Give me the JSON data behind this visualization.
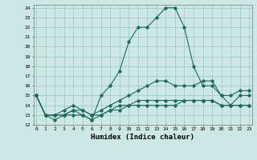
{
  "title": "",
  "xlabel": "Humidex (Indice chaleur)",
  "background_color": "#cde8e4",
  "grid_color": "#a0ccc5",
  "line_color": "#1a6b5a",
  "yticks": [
    12,
    13,
    14,
    15,
    16,
    17,
    18,
    19,
    20,
    21,
    22,
    23,
    24
  ],
  "xticks": [
    0,
    1,
    2,
    3,
    4,
    5,
    6,
    7,
    8,
    9,
    10,
    11,
    12,
    13,
    14,
    15,
    16,
    17,
    18,
    19,
    20,
    21,
    22,
    23
  ],
  "line1_x": [
    0,
    1,
    2,
    3,
    4,
    5,
    6,
    7,
    8,
    9,
    10,
    11,
    12,
    13,
    14,
    15,
    16,
    17,
    18,
    19,
    20,
    21,
    22,
    23
  ],
  "line1_y": [
    15,
    13,
    12.5,
    13,
    13.5,
    13,
    12.5,
    15,
    16,
    17.5,
    20.5,
    22,
    22,
    23,
    24,
    24,
    22,
    18,
    16,
    16,
    15,
    14,
    15,
    15
  ],
  "line2_x": [
    0,
    1,
    2,
    3,
    4,
    5,
    6,
    7,
    8,
    9,
    10,
    11,
    12,
    13,
    14,
    15,
    16,
    17,
    18,
    19,
    20,
    21,
    22,
    23
  ],
  "line2_y": [
    15,
    13,
    13,
    13.5,
    14,
    13.5,
    13,
    13.5,
    14,
    14.5,
    15,
    15.5,
    16,
    16.5,
    16.5,
    16,
    16,
    16,
    16.5,
    16.5,
    15,
    15,
    15.5,
    15.5
  ],
  "line3_x": [
    0,
    1,
    2,
    3,
    4,
    5,
    6,
    7,
    8,
    9,
    10,
    11,
    12,
    13,
    14,
    15,
    16,
    17,
    18,
    19,
    20,
    21,
    22,
    23
  ],
  "line3_y": [
    15,
    13,
    13,
    13,
    13.5,
    13.5,
    13,
    13,
    13.5,
    14,
    14,
    14.5,
    14.5,
    14.5,
    14.5,
    14.5,
    14.5,
    14.5,
    14.5,
    14.5,
    14,
    14,
    14,
    14
  ],
  "line4_x": [
    0,
    1,
    2,
    3,
    4,
    5,
    6,
    7,
    8,
    9,
    10,
    11,
    12,
    13,
    14,
    15,
    16,
    17,
    18,
    19,
    20,
    21,
    22,
    23
  ],
  "line4_y": [
    15,
    13,
    13,
    13,
    13,
    13,
    12.5,
    13,
    13.5,
    13.5,
    14,
    14,
    14,
    14,
    14,
    14,
    14.5,
    14.5,
    14.5,
    14.5,
    14,
    14,
    14,
    14
  ],
  "figwidth": 3.2,
  "figheight": 2.0,
  "dpi": 100
}
